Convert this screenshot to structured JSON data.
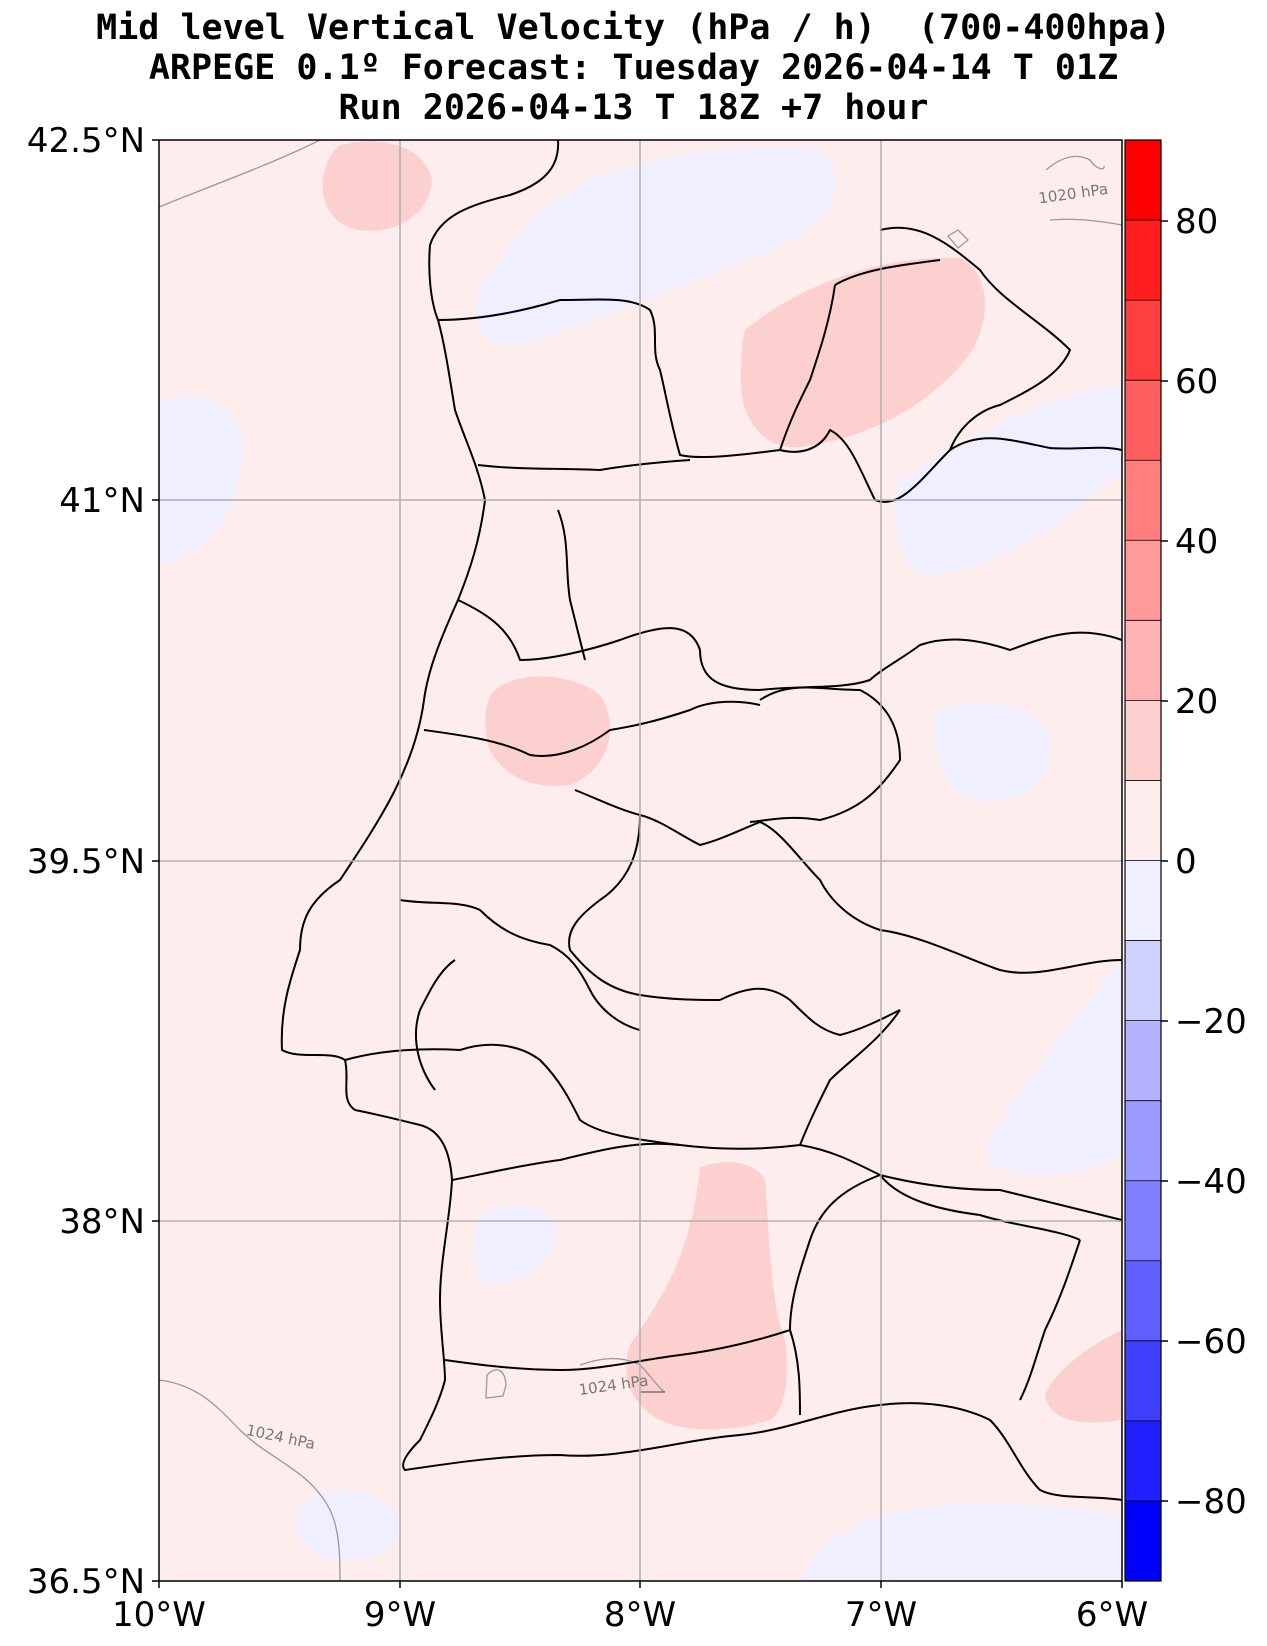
{
  "title": {
    "line1": "Mid level Vertical Velocity (hPa / h)  (700-400hpa)",
    "line2": "ARPEGE 0.1º Forecast: Tuesday 2026-04-14 T 01Z",
    "line3": "Run 2026-04-13 T 18Z +7 hour"
  },
  "map": {
    "lat_labels": [
      "42.5°N",
      "41°N",
      "39.5°N",
      "38°N",
      "36.5°N"
    ],
    "lon_labels": [
      "10°W",
      "9°W",
      "8°W",
      "7°W",
      "6°W"
    ],
    "extent": {
      "lon_min": -10,
      "lon_max": -6,
      "lat_min": 36.5,
      "lat_max": 42.5
    },
    "pressure_labels": [
      "1020 hPa",
      "1024 hPa",
      "1024 hPa"
    ],
    "background_value_color": "#fdeded"
  },
  "colorbar": {
    "ticks": [
      "80",
      "60",
      "40",
      "20",
      "0",
      "−20",
      "−40",
      "−60",
      "−80"
    ],
    "levels": [
      -90,
      -80,
      -70,
      -60,
      -50,
      -40,
      -30,
      -20,
      -10,
      0,
      10,
      20,
      30,
      40,
      50,
      60,
      70,
      80,
      90
    ],
    "colors": [
      "#0000ff",
      "#1f1fff",
      "#3f3fff",
      "#5f5fff",
      "#7f7fff",
      "#9a9aff",
      "#b3b3ff",
      "#d0d0ff",
      "#efefff",
      "#fdeded",
      "#fdd0d0",
      "#ffb3b3",
      "#ff9a9a",
      "#ff7f7f",
      "#ff5f5f",
      "#ff3f3f",
      "#ff1f1f",
      "#ff0000"
    ]
  }
}
